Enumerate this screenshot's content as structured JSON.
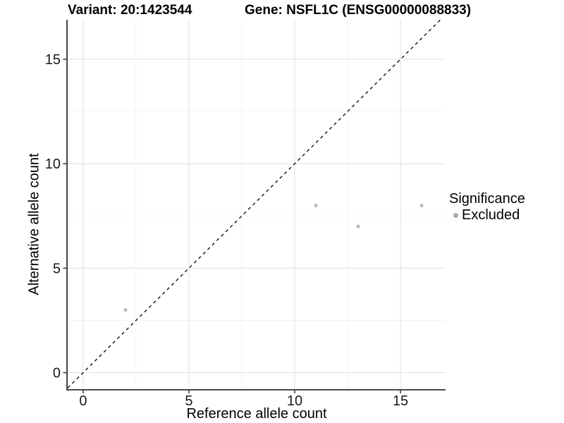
{
  "chart_data": {
    "type": "scatter",
    "titles": [
      "Variant: 20:1423544",
      "Gene: NSFL1C (ENSG00000088833)"
    ],
    "xlabel": "Reference allele count",
    "ylabel": "Alternative allele count",
    "xticks": [
      0,
      5,
      10,
      15
    ],
    "yticks": [
      0,
      5,
      10,
      15
    ],
    "x_minor": [
      2.5,
      7.5,
      12.5
    ],
    "y_minor": [
      2.5,
      7.5,
      12.5
    ],
    "xlim": [
      -0.73,
      17.13
    ],
    "ylim": [
      -0.79,
      16.89
    ],
    "grid": "major+minor",
    "identity_line": {
      "equation": "y = x",
      "style": "dashed"
    },
    "series": [
      {
        "name": "Excluded",
        "points": [
          {
            "x": 2,
            "y": 3
          },
          {
            "x": 11,
            "y": 8
          },
          {
            "x": 13,
            "y": 7
          },
          {
            "x": 16,
            "y": 8
          }
        ]
      }
    ],
    "legend": {
      "title": "Significance",
      "position": "right",
      "items": [
        {
          "label": "Excluded",
          "marker": "circle",
          "marker_color": "#a9a9a9"
        }
      ]
    },
    "colors": {
      "background": "#ffffff",
      "grid_major": "#e4e4e4",
      "grid_minor": "#f2f2f2",
      "axis_line": "#333333",
      "tick_mark": "#333333",
      "tick_text": "#1a1a1a",
      "point": "#bcbcbc",
      "identity_line": "#111111"
    }
  }
}
